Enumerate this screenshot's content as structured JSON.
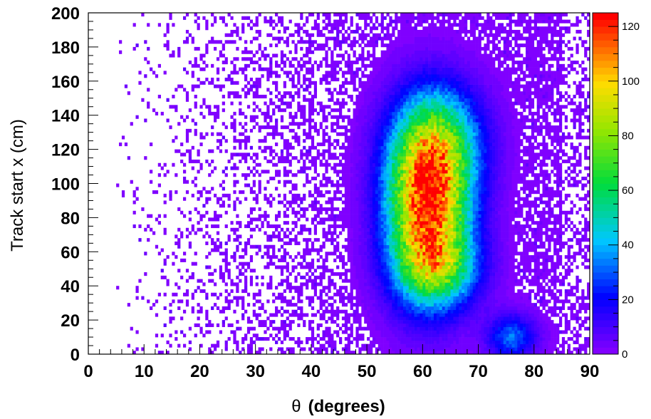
{
  "chart_data": {
    "type": "heatmap",
    "xlabel_symbol": "θ",
    "xlabel_text": "(degrees)",
    "ylabel": "Track start x (cm)",
    "xlim": [
      0,
      90
    ],
    "ylim": [
      0,
      200
    ],
    "x_ticks": [
      "0",
      "10",
      "20",
      "30",
      "40",
      "50",
      "60",
      "70",
      "80",
      "90"
    ],
    "y_ticks": [
      "0",
      "20",
      "40",
      "60",
      "80",
      "100",
      "120",
      "140",
      "160",
      "180",
      "200"
    ],
    "z_range": [
      0,
      125
    ],
    "colorbar_ticks": [
      "0",
      "20",
      "40",
      "60",
      "80",
      "100",
      "120"
    ],
    "grid": false,
    "blobs": [
      {
        "name": "main",
        "cx": 61,
        "cy": 87,
        "sx": 5.0,
        "sy": 34,
        "peak": 118
      },
      {
        "name": "upper-lobe",
        "cx": 63,
        "cy": 125,
        "sx": 5.5,
        "sy": 22,
        "peak": 42
      },
      {
        "name": "lower-lobe",
        "cx": 63,
        "cy": 50,
        "sx": 5.0,
        "sy": 14,
        "peak": 40
      },
      {
        "name": "small-cluster",
        "cx": 76,
        "cy": 10,
        "sx": 3.0,
        "sy": 9,
        "peak": 32
      }
    ],
    "background_occupancy": {
      "x_start": 5,
      "x_full": 60,
      "max_probability": 0.75
    }
  }
}
